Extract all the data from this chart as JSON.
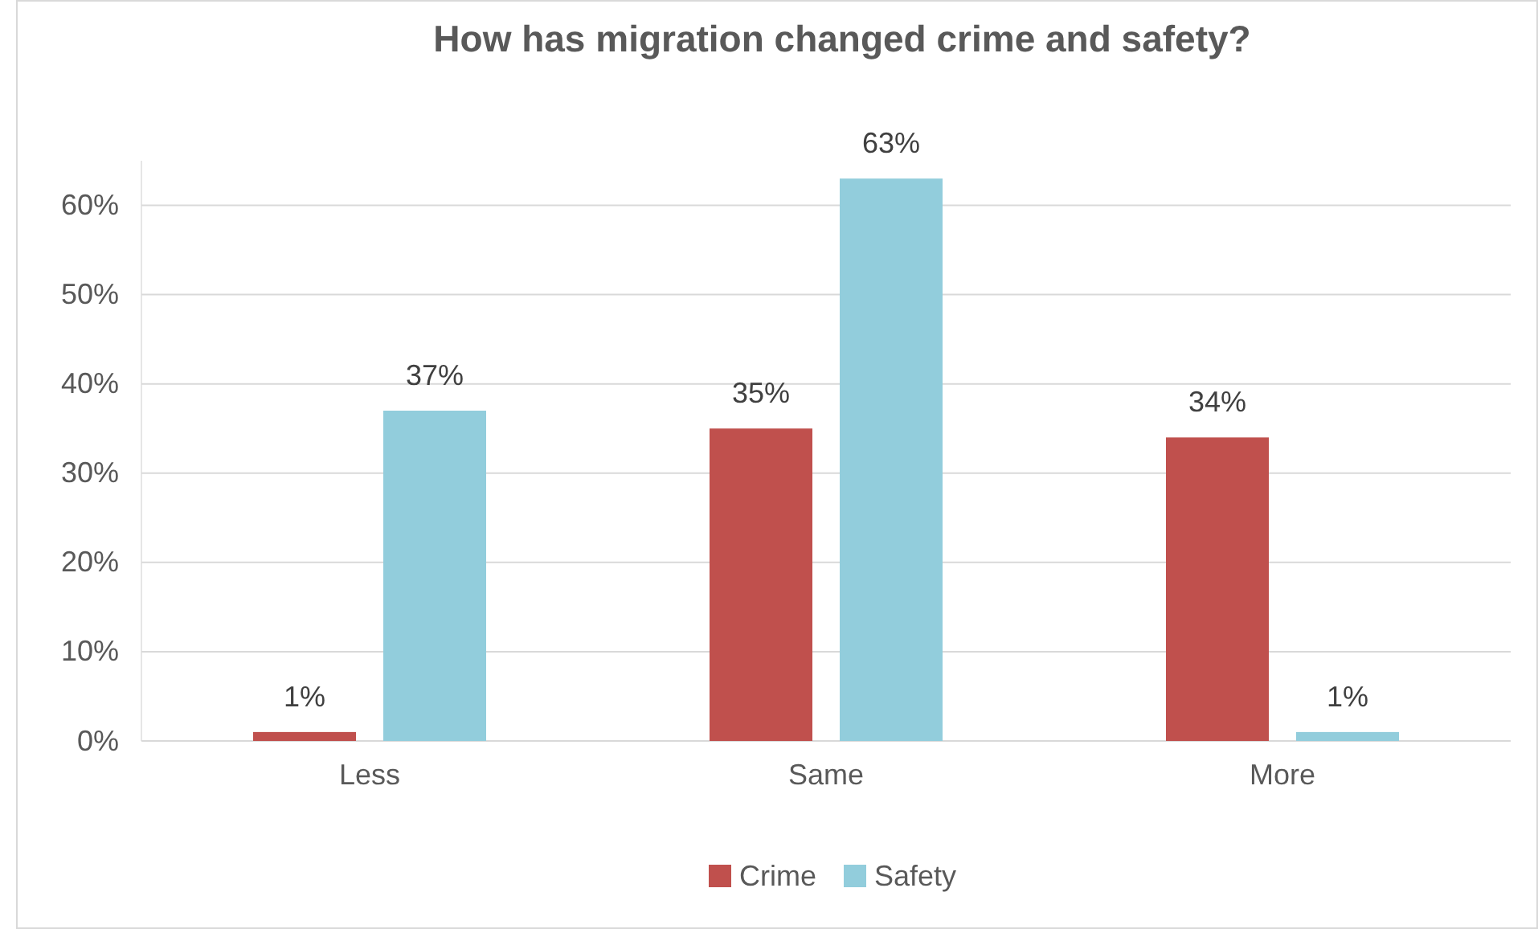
{
  "chart_data": {
    "type": "bar",
    "title": "How has migration changed crime and safety?",
    "categories": [
      "Less",
      "Same",
      "More"
    ],
    "series": [
      {
        "name": "Crime",
        "color": "#c0504d",
        "values": [
          1,
          35,
          34
        ],
        "value_labels": [
          "1%",
          "35%",
          "34%"
        ]
      },
      {
        "name": "Safety",
        "color": "#92cddc",
        "values": [
          37,
          63,
          1
        ],
        "value_labels": [
          "37%",
          "63%",
          "1%"
        ]
      }
    ],
    "ylim": [
      0,
      65
    ],
    "yticks": [
      {
        "value": 0,
        "label": "0%"
      },
      {
        "value": 10,
        "label": "10%"
      },
      {
        "value": 20,
        "label": "20%"
      },
      {
        "value": 30,
        "label": "30%"
      },
      {
        "value": 40,
        "label": "40%"
      },
      {
        "value": 50,
        "label": "50%"
      },
      {
        "value": 60,
        "label": "60%"
      }
    ],
    "grid": "y",
    "legend": "bottom"
  }
}
